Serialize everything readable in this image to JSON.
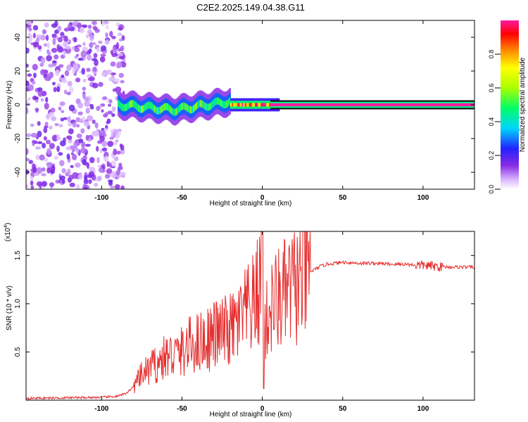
{
  "title": "C2E2.2025.149.04.38.G11",
  "colorbar": {
    "label": "Normalized spectral amplitude",
    "ticks": [
      "0.0",
      "0.2",
      "0.4",
      "0.6",
      "0.8"
    ],
    "tick_values": [
      0.0,
      0.2,
      0.4,
      0.6,
      0.8
    ]
  },
  "chart_data": [
    {
      "type": "heatmap",
      "xlabel": "Height of straight line (km)",
      "ylabel": "Frequency (Hz)",
      "xlim": [
        -147,
        132
      ],
      "ylim": [
        -50,
        50
      ],
      "xticks": [
        -100,
        -50,
        0,
        50,
        100
      ],
      "xtick_labels": [
        "-100",
        "-50",
        "0",
        "50",
        "100"
      ],
      "yticks": [
        40,
        20,
        0,
        -20,
        -40
      ],
      "ytick_labels": [
        "40",
        "20",
        "0",
        "-20",
        "-40"
      ],
      "regions": [
        {
          "x_range": [
            -147,
            -86
          ],
          "f_range": [
            -50,
            50
          ],
          "amplitude": 0.12,
          "pattern": "noise"
        },
        {
          "x_range": [
            -90,
            -20
          ],
          "f_center": [
            0,
            -3,
            2
          ],
          "f_width": 6,
          "amplitude": 0.35,
          "pattern": "blob"
        },
        {
          "x_range": [
            -20,
            10
          ],
          "f_center": [
            0
          ],
          "f_width": 3,
          "amplitude": 0.6,
          "pattern": "blob"
        },
        {
          "x_range": [
            5,
            132
          ],
          "f_center": [
            0
          ],
          "f_width": 3,
          "amplitude": 1.0,
          "pattern": "line"
        }
      ]
    },
    {
      "type": "line",
      "xlabel": "Height of straight line (km)",
      "ylabel": "SNR (10 * v/v)",
      "y_multiplier": "(x10",
      "y_multiplier_exp": "4",
      "xlim": [
        -147,
        132
      ],
      "ylim": [
        0,
        17500
      ],
      "xticks": [
        -100,
        -50,
        0,
        50,
        100
      ],
      "xtick_labels": [
        "-100",
        "-50",
        "0",
        "50",
        "100"
      ],
      "yticks": [
        5000,
        10000,
        15000
      ],
      "ytick_labels": [
        "0.5",
        "1.0",
        "1.5"
      ],
      "line_color": "#e53030",
      "series": [
        {
          "x": [
            -147,
            -120,
            -100,
            -90,
            -85,
            -80,
            -75,
            -70,
            -65,
            -60,
            -55,
            -50,
            -45,
            -40,
            -35,
            -30,
            -25,
            -20,
            -15,
            -10,
            -5,
            -1,
            0,
            1,
            5,
            10,
            15,
            20,
            25,
            30,
            35,
            40,
            50,
            60,
            70,
            80,
            90,
            95,
            100,
            105,
            110,
            120,
            132
          ],
          "y": [
            200,
            250,
            300,
            400,
            700,
            1400,
            2600,
            3300,
            3800,
            4500,
            4700,
            5000,
            5700,
            6000,
            6300,
            6800,
            7000,
            7200,
            8000,
            9000,
            10000,
            12000,
            17500,
            7000,
            9500,
            10500,
            11000,
            11800,
            12500,
            13300,
            13800,
            14100,
            14300,
            14200,
            14200,
            14100,
            14100,
            14000,
            14000,
            13900,
            13850,
            13800,
            13800
          ]
        }
      ]
    }
  ]
}
